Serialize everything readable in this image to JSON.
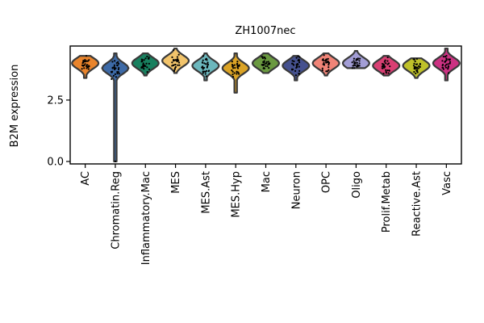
{
  "chart_data": {
    "type": "violin",
    "title": "ZH1007nec",
    "xlabel": "",
    "ylabel": "B2M expression",
    "ylim": [
      -0.1,
      4.7
    ],
    "yticks": [
      0.0,
      2.5
    ],
    "ytick_labels": [
      "0.0",
      "2.5"
    ],
    "grid": false,
    "categories": [
      "AC",
      "Chromatin.Reg",
      "Inflammatory.Mac",
      "MES",
      "MES.Ast",
      "MES.Hyp",
      "Mac",
      "Neuron",
      "OPC",
      "Oligo",
      "Prolif.Metab",
      "Reactive.Ast",
      "Vasc"
    ],
    "colors": [
      "#e9842c",
      "#3d6aa7",
      "#18805f",
      "#f2c46b",
      "#6cb7bd",
      "#dba325",
      "#6a9940",
      "#45518f",
      "#f08477",
      "#a39ed6",
      "#d93f73",
      "#bfc12a",
      "#cc3182"
    ],
    "series": [
      {
        "name": "AC",
        "min": 3.4,
        "max": 4.3,
        "median": 4.0
      },
      {
        "name": "Chromatin.Reg",
        "min": 0.0,
        "max": 4.4,
        "median": 3.8
      },
      {
        "name": "Inflammatory.Mac",
        "min": 3.5,
        "max": 4.4,
        "median": 4.0
      },
      {
        "name": "MES",
        "min": 3.6,
        "max": 4.6,
        "median": 4.1
      },
      {
        "name": "MES.Ast",
        "min": 3.3,
        "max": 4.4,
        "median": 3.9
      },
      {
        "name": "MES.Hyp",
        "min": 2.8,
        "max": 4.4,
        "median": 3.8
      },
      {
        "name": "Mac",
        "min": 3.6,
        "max": 4.4,
        "median": 4.0
      },
      {
        "name": "Neuron",
        "min": 3.3,
        "max": 4.3,
        "median": 3.9
      },
      {
        "name": "OPC",
        "min": 3.5,
        "max": 4.4,
        "median": 4.0
      },
      {
        "name": "Oligo",
        "min": 3.8,
        "max": 4.5,
        "median": 4.0
      },
      {
        "name": "Prolif.Metab",
        "min": 3.5,
        "max": 4.3,
        "median": 3.9
      },
      {
        "name": "Reactive.Ast",
        "min": 3.4,
        "max": 4.2,
        "median": 3.9
      },
      {
        "name": "Vasc",
        "min": 3.3,
        "max": 4.6,
        "median": 4.0
      }
    ]
  }
}
